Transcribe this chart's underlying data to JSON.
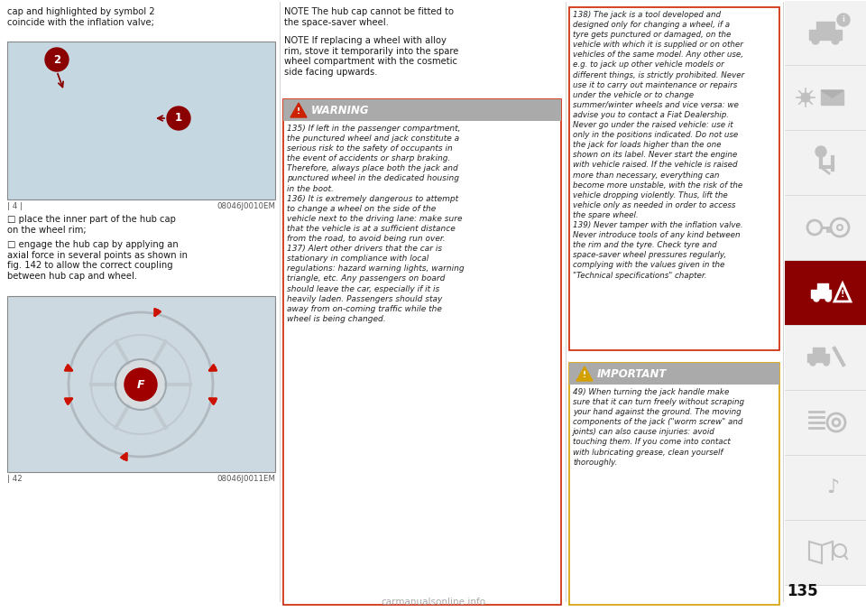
{
  "page_number": "135",
  "background_color": "#ffffff",
  "col1_text_top": "cap and highlighted by symbol 2\ncoincide with the inflation valve;",
  "fig1_label_left": "| 4 |",
  "fig1_label_right": "08046J0010EM",
  "col1_bullets": [
    "□ place the inner part of the hub cap\non the wheel rim;",
    "□ engage the hub cap by applying an\naxial force in several points as shown in\nfig. 142 to allow the correct coupling\nbetween hub cap and wheel."
  ],
  "fig2_label_left": "| 42",
  "fig2_label_right": "08046J0011EM",
  "col2_note1": "NOTE The hub cap cannot be fitted to\nthe space-saver wheel.",
  "col2_note2": "NOTE If replacing a wheel with alloy\nrim, stove it temporarily into the spare\nwheel compartment with the cosmetic\nside facing upwards.",
  "warning_title": "WARNING",
  "warning_bg": "#aaaaaa",
  "warning_text_135": "135) If left in the passenger compartment,\nthe punctured wheel and jack constitute a\nserious risk to the safety of occupants in\nthe event of accidents or sharp braking.\nTherefore, always place both the jack and\npunctured wheel in the dedicated housing\nin the boot.",
  "warning_text_136": "136) It is extremely dangerous to attempt\nto change a wheel on the side of the\nvehicle next to the driving lane: make sure\nthat the vehicle is at a sufficient distance\nfrom the road, to avoid being run over.",
  "warning_text_137": "137) Alert other drivers that the car is\nstationary in compliance with local\nregulations: hazard warning lights, warning\ntriangle, etc. Any passengers on board\nshould leave the car, especially if it is\nheavily laden. Passengers should stay\naway from on-coming traffic while the\nwheel is being changed.",
  "col3_text_138": "138) The jack is a tool developed and\ndesigned only for changing a wheel, if a\ntyre gets punctured or damaged, on the\nvehicle with which it is supplied or on other\nvehicles of the same model. Any other use,\ne.g. to jack up other vehicle models or\ndifferent things, is strictly prohibited. Never\nuse it to carry out maintenance or repairs\nunder the vehicle or to change\nsummer/winter wheels and vice versa: we\nadvise you to contact a Fiat Dealership.\nNever go under the raised vehicle: use it\nonly in the positions indicated. Do not use\nthe jack for loads higher than the one\nshown on its label. Never start the engine\nwith vehicle raised. If the vehicle is raised\nmore than necessary, everything can\nbecome more unstable, with the risk of the\nvehicle dropping violently. Thus, lift the\nvehicle only as needed in order to access\nthe spare wheel.",
  "col3_text_139": "139) Never tamper with the inflation valve.\nNever introduce tools of any kind between\nthe rim and the tyre. Check tyre and\nspace-saver wheel pressures regularly,\ncomplying with the values given in the\n\"Technical specifications\" chapter.",
  "important_title": "IMPORTANT",
  "important_text": "49) When turning the jack handle make\nsure that it can turn freely without scraping\nyour hand against the ground. The moving\ncomponents of the jack (\"worm screw\" and\njoints) can also cause injuries: avoid\ntouching them. If you come into contact\nwith lubricating grease, clean yourself\nthoroughly.",
  "text_color": "#1a1a1a",
  "text_color_italic": "#222222",
  "label_color": "#555555",
  "fontsize_body": 7.2,
  "fontsize_label": 6.2,
  "fontsize_note": 7.2,
  "fontsize_warning_title": 8.5,
  "fontsize_warning_body": 6.5,
  "fontsize_page": 12,
  "crimson": "#8b0000",
  "dark_red": "#a00000",
  "light_blue_img": "#c5d8e2",
  "light_blue_img2": "#ccd9e0",
  "sidebar_divider": "#cccccc",
  "sidebar_active_bg": "#8b0000",
  "sidebar_inactive_bg": "#f2f2f2",
  "warn_border_color": "#cc2200",
  "imp_border_color": "#d4a000",
  "col3_border_color": "#cc2200"
}
